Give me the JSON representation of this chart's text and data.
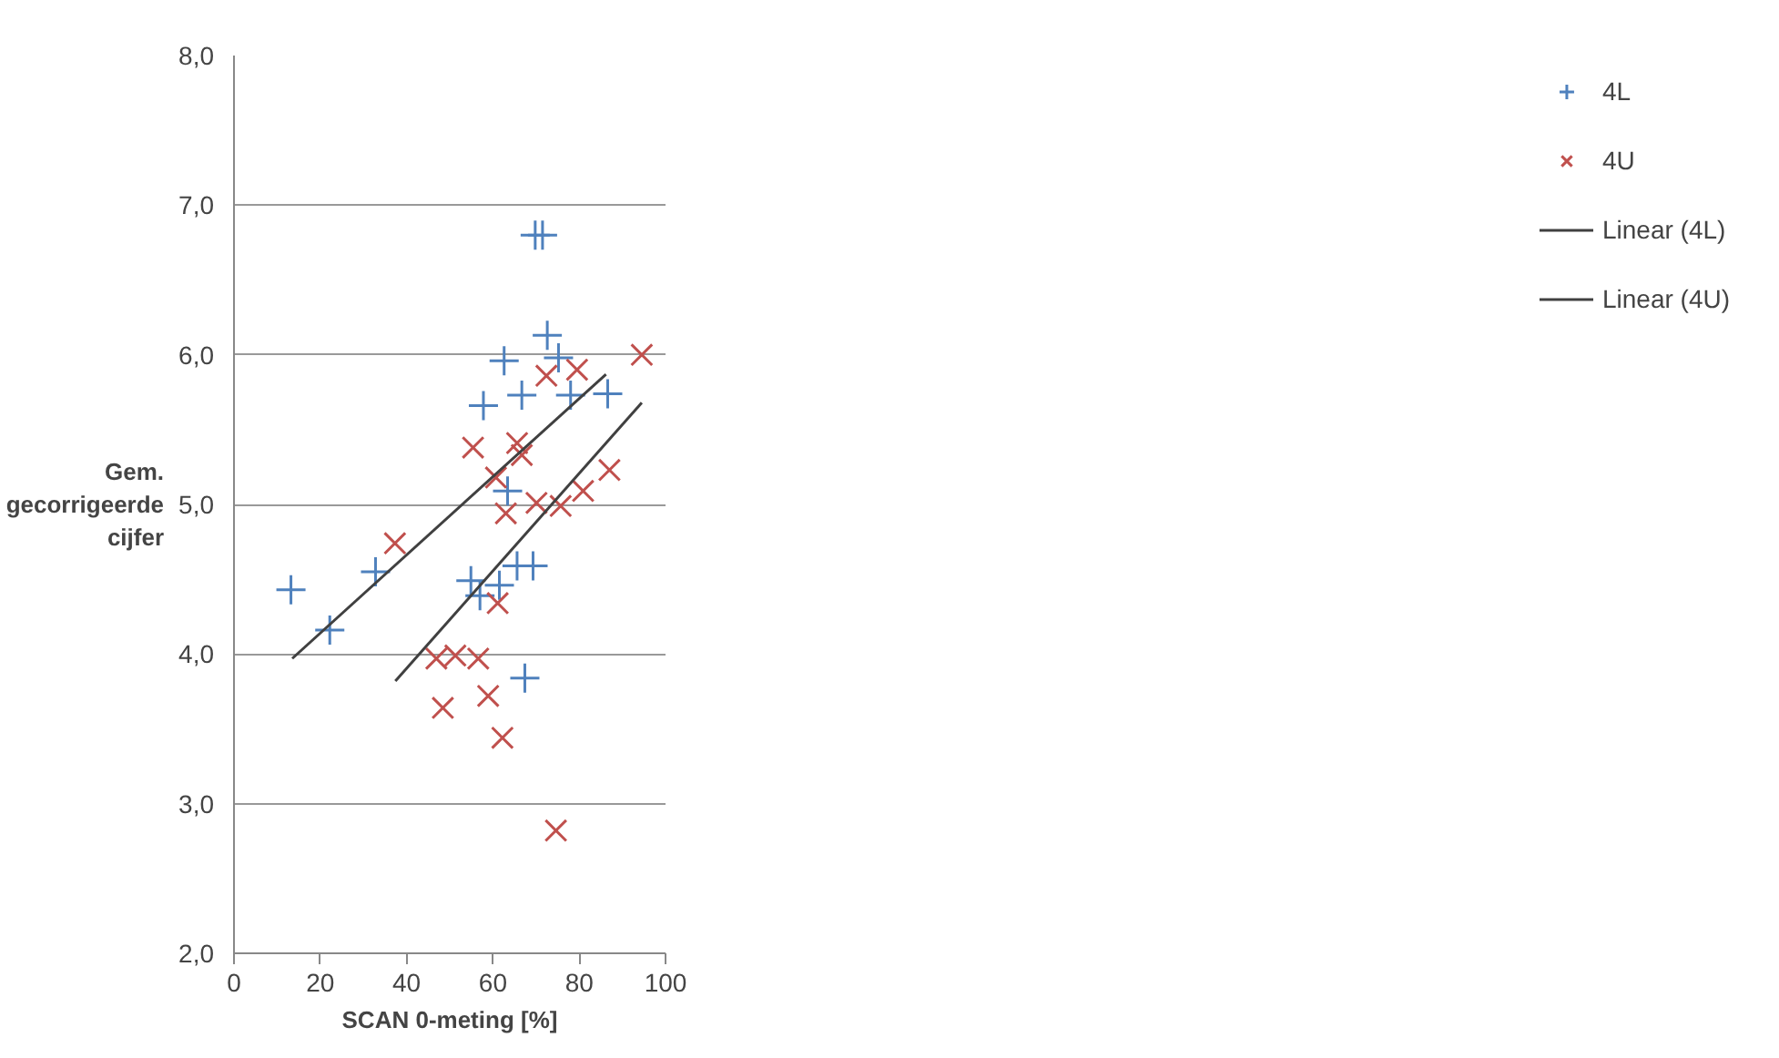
{
  "chart_data": {
    "type": "scatter",
    "xlabel": "SCAN 0-meting [%]",
    "ylabel": "Gem.\ngecorrigeerde\ncijfer",
    "xlim": [
      0,
      100
    ],
    "xticks": [
      0,
      20,
      40,
      60,
      80,
      100
    ],
    "ylim": [
      2,
      8
    ],
    "yticks": [
      {
        "value": 2,
        "label": "2,0"
      },
      {
        "value": 3,
        "label": "3,0"
      },
      {
        "value": 4,
        "label": "4,0"
      },
      {
        "value": 5,
        "label": "5,0"
      },
      {
        "value": 6,
        "label": "6,0"
      },
      {
        "value": 7,
        "label": "7,0"
      },
      {
        "value": 8,
        "label": "8,0"
      }
    ],
    "grid": "y",
    "legend": "right",
    "series": [
      {
        "name": "4L",
        "color": "#4f81bd",
        "marker": "cross",
        "x": [
          13.2,
          22.2,
          32.8,
          69.8,
          71.5,
          72.6,
          75.2,
          62.6,
          66.7,
          57.8,
          78,
          86.6,
          63.4,
          54.9,
          57,
          61.5,
          65.6,
          69.3,
          67.4
        ],
        "values": [
          4.43,
          4.16,
          4.55,
          6.8,
          6.8,
          6.13,
          5.98,
          5.96,
          5.73,
          5.66,
          5.73,
          5.74,
          5.09,
          4.49,
          4.39,
          4.46,
          4.59,
          4.59,
          3.84
        ]
      },
      {
        "name": "4U",
        "color": "#c0504d",
        "marker": "x",
        "x": [
          37.3,
          94.5,
          72.4,
          79.5,
          55.4,
          65.6,
          66.7,
          60.7,
          63,
          70.1,
          75.7,
          80.9,
          87,
          61.1,
          46.9,
          51.3,
          56.6,
          48.4,
          58.9,
          62.2,
          74.6
        ],
        "values": [
          4.74,
          6.0,
          5.86,
          5.9,
          5.38,
          5.41,
          5.33,
          5.18,
          4.94,
          5.01,
          4.99,
          5.09,
          5.23,
          4.34,
          3.97,
          3.99,
          3.97,
          3.64,
          3.72,
          3.44,
          2.82
        ]
      },
      {
        "name": "Linear (4L)",
        "type": "line",
        "color": "#404040",
        "marker": "none",
        "x": [
          13.5,
          86.2
        ],
        "values": [
          3.97,
          5.87
        ]
      },
      {
        "name": "Linear (4U)",
        "type": "line",
        "color": "#404040",
        "marker": "none",
        "x": [
          37.4,
          94.5
        ],
        "values": [
          3.82,
          5.68
        ]
      }
    ]
  }
}
